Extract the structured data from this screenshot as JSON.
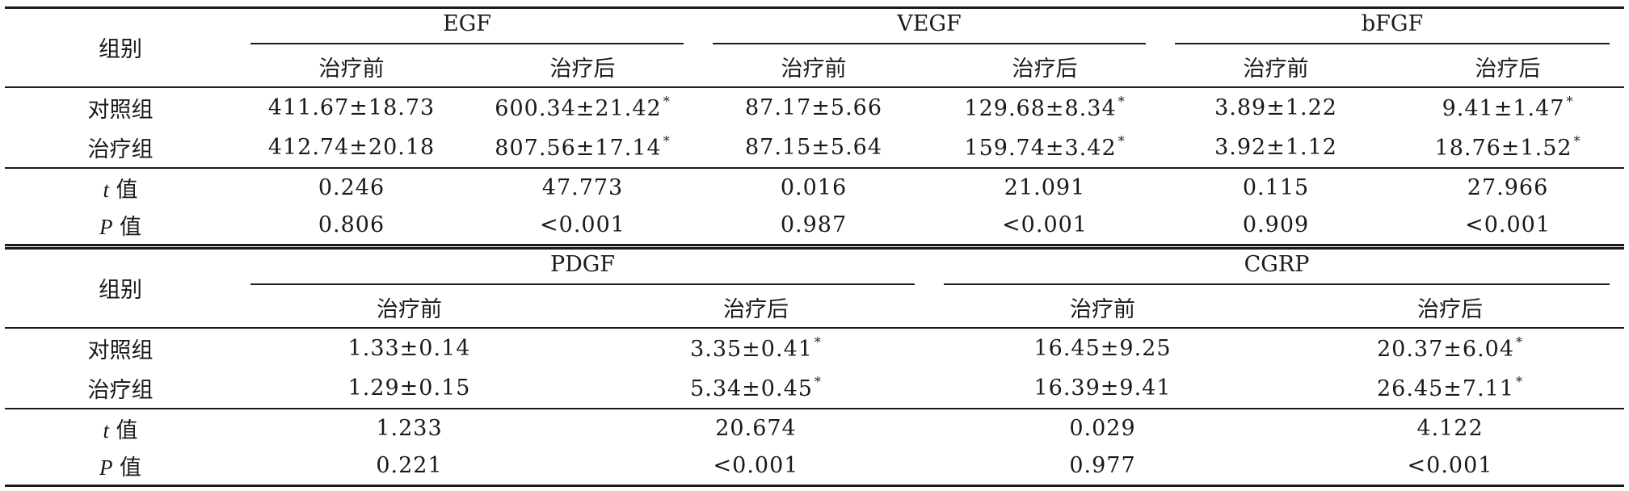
{
  "table1": {
    "group_header": "组别",
    "markers": [
      "EGF",
      "VEGF",
      "bFGF"
    ],
    "sub_before": "治疗前",
    "sub_after": "治疗后",
    "rows": [
      {
        "label": "对照组",
        "cells": [
          "411.67±18.73",
          "600.34±21.42",
          "87.17±5.66",
          "129.68±8.34",
          "3.89±1.22",
          "9.41±1.47"
        ]
      },
      {
        "label": "治疗组",
        "cells": [
          "412.74±20.18",
          "807.56±17.14",
          "87.15±5.64",
          "159.74±3.42",
          "3.92±1.12",
          "18.76±1.52"
        ]
      }
    ],
    "t_row": {
      "label_var": "t",
      "label_text": " 值",
      "cells": [
        "0.246",
        "47.773",
        "0.016",
        "21.091",
        "0.115",
        "27.966"
      ]
    },
    "p_row": {
      "label_var": "P",
      "label_text": " 值",
      "cells": [
        "0.806",
        "<0.001",
        "0.987",
        "<0.001",
        "0.909",
        "<0.001"
      ]
    }
  },
  "table2": {
    "group_header": "组别",
    "markers": [
      "PDGF",
      "CGRP"
    ],
    "sub_before": "治疗前",
    "sub_after": "治疗后",
    "rows": [
      {
        "label": "对照组",
        "cells": [
          "1.33±0.14",
          "3.35±0.41",
          "16.45±9.25",
          "20.37±6.04"
        ]
      },
      {
        "label": "治疗组",
        "cells": [
          "1.29±0.15",
          "5.34±0.45",
          "16.39±9.41",
          "26.45±7.11"
        ]
      }
    ],
    "t_row": {
      "label_var": "t",
      "label_text": " 值",
      "cells": [
        "1.233",
        "20.674",
        "0.029",
        "4.122"
      ]
    },
    "p_row": {
      "label_var": "P",
      "label_text": " 值",
      "cells": [
        "0.221",
        "<0.001",
        "0.977",
        "<0.001"
      ]
    }
  },
  "significance_mark": "*"
}
